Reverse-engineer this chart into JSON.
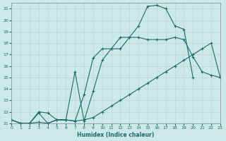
{
  "xlabel": "Humidex (Indice chaleur)",
  "xlim": [
    0,
    23
  ],
  "ylim": [
    11,
    21.5
  ],
  "xticks": [
    0,
    1,
    2,
    3,
    4,
    5,
    6,
    7,
    8,
    9,
    10,
    11,
    12,
    13,
    14,
    15,
    16,
    17,
    18,
    19,
    20,
    21,
    22,
    23
  ],
  "yticks": [
    11,
    12,
    13,
    14,
    15,
    16,
    17,
    18,
    19,
    20,
    21
  ],
  "bg_color": "#cce8e8",
  "line_color": "#1a6b6b",
  "line1_x": [
    0,
    1,
    2,
    3,
    4,
    5,
    6,
    7,
    8,
    9,
    10,
    11,
    12,
    13,
    14,
    15,
    16,
    17,
    18,
    19,
    20,
    21,
    22,
    23
  ],
  "line1_y": [
    11.3,
    11.0,
    11.0,
    12.0,
    11.9,
    11.3,
    11.3,
    11.2,
    11.3,
    11.5,
    12.0,
    12.5,
    13.0,
    13.5,
    14.0,
    14.5,
    15.0,
    15.5,
    16.0,
    16.5,
    17.0,
    17.5,
    18.0,
    15.0
  ],
  "line2_x": [
    0,
    1,
    2,
    3,
    4,
    5,
    6,
    7,
    8,
    9,
    10,
    11,
    12,
    13,
    14,
    15,
    16,
    17,
    18,
    19,
    20,
    21,
    22,
    23
  ],
  "line2_y": [
    11.3,
    11.0,
    11.0,
    11.1,
    11.0,
    11.3,
    11.3,
    11.2,
    13.5,
    16.7,
    17.5,
    17.5,
    17.5,
    18.5,
    18.5,
    18.3,
    18.3,
    18.3,
    18.5,
    18.3,
    16.8,
    15.5,
    15.2,
    15.0
  ],
  "line3_x": [
    0,
    1,
    2,
    3,
    4,
    5,
    6,
    7,
    8,
    9,
    10,
    11,
    12,
    13,
    14,
    15,
    16,
    17,
    18,
    19,
    20
  ],
  "line3_y": [
    11.3,
    11.0,
    11.0,
    11.9,
    11.0,
    11.3,
    11.3,
    15.5,
    11.2,
    13.8,
    16.5,
    17.5,
    18.5,
    18.5,
    19.5,
    21.2,
    21.3,
    21.0,
    19.5,
    19.2,
    15.0
  ]
}
